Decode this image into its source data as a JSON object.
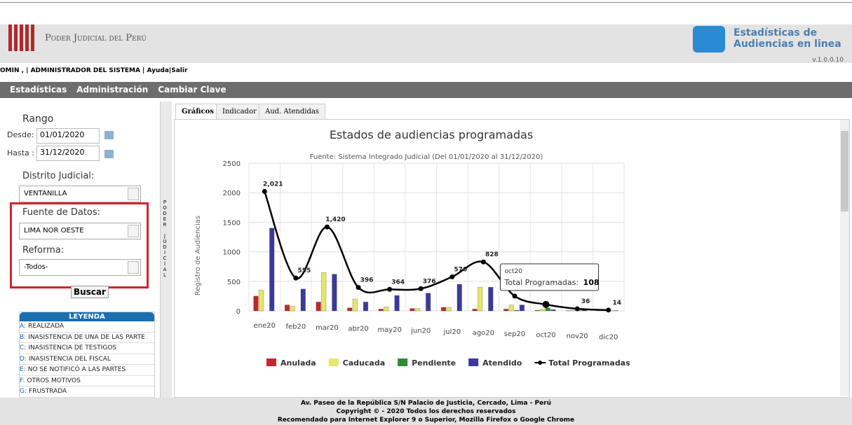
{
  "header": {
    "org": "Poder Judicial del Perú",
    "app_title": "Estadísticas de",
    "app_title2": "Audiencias en linea",
    "version": "v.1.0.0.10",
    "user_line": "OMIN , | ADMINISTRADOR DEL SISTEMA |",
    "help": "Ayuda|",
    "logout": "Salir"
  },
  "nav": [
    "Estadísticas",
    "Administración",
    "Cambiar Clave"
  ],
  "filters": {
    "range_title": "Rango",
    "from_label": "Desde:",
    "from_value": "01/01/2020",
    "to_label": "Hasta :",
    "to_value": "31/12/2020",
    "district_label": "Distrito Judicial:",
    "district_value": "VENTANILLA",
    "source_label": "Fuente de Datos:",
    "source_value": "LIMA NOR OESTE",
    "reform_label": "Reforma:",
    "reform_value": "-Todos-",
    "search": "Buscar"
  },
  "legend": {
    "title": "LEYENDA",
    "items": [
      {
        "code": "A:",
        "text": "REALIZADA"
      },
      {
        "code": "B:",
        "text": "INASISTENCIA DE UNA DE LAS PARTE"
      },
      {
        "code": "C:",
        "text": "INASISTENCIA DE TESTIGOS"
      },
      {
        "code": "D:",
        "text": "INASISTENCIA DEL FISCAL"
      },
      {
        "code": "E:",
        "text": "NO SE NOTIFICÓ A LAS PARTES"
      },
      {
        "code": "F:",
        "text": "OTROS MOTIVOS"
      },
      {
        "code": "G:",
        "text": "FRUSTRADA"
      }
    ]
  },
  "side_strip": "PODER JUDICIAL",
  "tabs": [
    "Gráficos",
    "Indicador",
    "Aud. Atendidas"
  ],
  "chart_data": {
    "type": "bar",
    "title": "Estados de audiencias programadas",
    "subtitle": "Fuente: Sistema Integrado Judicial (Del 01/01/2020 al 31/12/2020)",
    "y_label": "Registro de Audiencias",
    "categories": [
      "ene20",
      "feb20",
      "mar20",
      "abr20",
      "may20",
      "jun20",
      "jul20",
      "ago20",
      "sep20",
      "oct20",
      "nov20",
      "dic20"
    ],
    "series": [
      {
        "name": "Anulada",
        "color": "#c0282e",
        "values": [
          250,
          100,
          150,
          50,
          30,
          40,
          60,
          30,
          30,
          10,
          5,
          2
        ]
      },
      {
        "name": "Caducada",
        "color": "#e6e667",
        "values": [
          350,
          80,
          650,
          200,
          70,
          40,
          60,
          400,
          100,
          30,
          10,
          5
        ]
      },
      {
        "name": "Pendiente",
        "color": "#2e8b3a",
        "values": [
          0,
          0,
          0,
          0,
          0,
          0,
          0,
          0,
          10,
          50,
          5,
          2
        ]
      },
      {
        "name": "Atendido",
        "color": "#3a3a9e",
        "values": [
          1400,
          370,
          620,
          150,
          260,
          300,
          450,
          400,
          100,
          20,
          16,
          5
        ]
      },
      {
        "name": "Total Programadas",
        "color": "#000000",
        "kind": "line",
        "values": [
          2021,
          555,
          1420,
          396,
          364,
          376,
          576,
          828,
          250,
          108,
          36,
          14
        ],
        "value_labels": [
          "2,021",
          "555",
          "1,420",
          "396",
          "364",
          "376",
          "576",
          "828",
          null,
          null,
          "36",
          "14"
        ]
      }
    ],
    "ylim": [
      0,
      2500
    ],
    "yticks": [
      0,
      500,
      1000,
      1500,
      2000,
      2500
    ],
    "grid": true,
    "tooltip": {
      "index": 9,
      "label": "Total Programadas:"
    }
  },
  "footer": [
    "Av. Paseo de la República S/N Palacio de Justicia, Cercado, Lima - Perú",
    "Copyright © - 2020 Todos los derechos reservados",
    "Recomendado para Internet Explorer 9 o Superior, Mozilla Firefox o Google Chrome"
  ]
}
